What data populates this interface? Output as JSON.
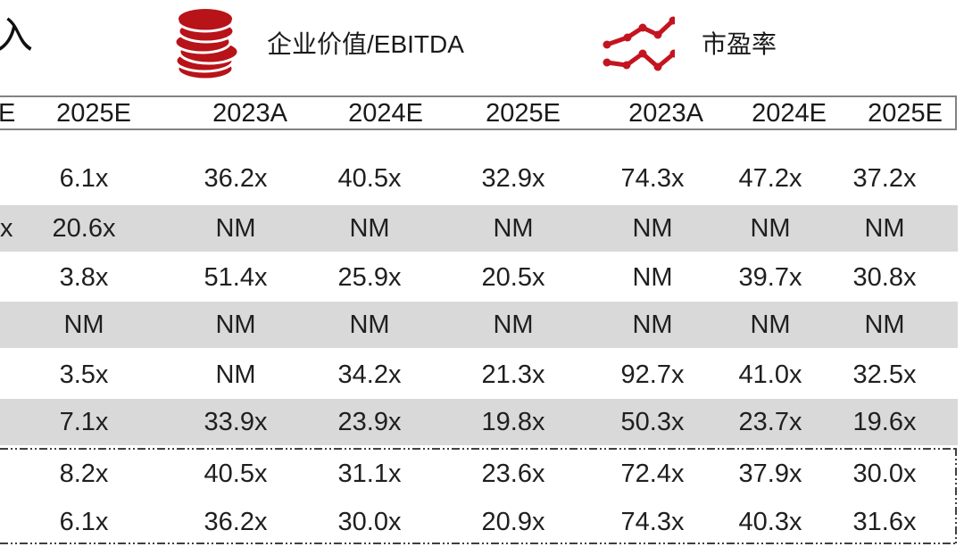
{
  "top": {
    "left_partial_label": "入",
    "ev_ebitda_section": {
      "icon": "coins-icon",
      "label": "企业价值/EBITDA"
    },
    "pe_section": {
      "icon": "line-chart-icon",
      "label": "市盈率"
    }
  },
  "table": {
    "partial_header": "E",
    "headers": [
      "2025E",
      "2023A",
      "2024E",
      "2025E",
      "2023A",
      "2024E",
      "2025E"
    ],
    "rows": [
      {
        "shaded": false,
        "partial": "",
        "values": [
          "6.1x",
          "36.2x",
          "40.5x",
          "32.9x",
          "74.3x",
          "47.2x",
          "37.2x"
        ]
      },
      {
        "shaded": true,
        "partial": "x",
        "values": [
          "20.6x",
          "NM",
          "NM",
          "NM",
          "NM",
          "NM",
          "NM"
        ]
      },
      {
        "shaded": false,
        "partial": "",
        "values": [
          "3.8x",
          "51.4x",
          "25.9x",
          "20.5x",
          "NM",
          "39.7x",
          "30.8x"
        ]
      },
      {
        "shaded": true,
        "partial": "",
        "values": [
          "NM",
          "NM",
          "NM",
          "NM",
          "NM",
          "NM",
          "NM"
        ]
      },
      {
        "shaded": false,
        "partial": "",
        "values": [
          "3.5x",
          "NM",
          "34.2x",
          "21.3x",
          "92.7x",
          "41.0x",
          "32.5x"
        ]
      },
      {
        "shaded": true,
        "partial": "",
        "values": [
          "7.1x",
          "33.9x",
          "23.9x",
          "19.8x",
          "50.3x",
          "23.7x",
          "19.6x"
        ]
      },
      {
        "shaded": false,
        "partial": "",
        "values": [
          "8.2x",
          "40.5x",
          "31.1x",
          "23.6x",
          "72.4x",
          "37.9x",
          "30.0x"
        ]
      },
      {
        "shaded": false,
        "partial": "",
        "values": [
          "6.1x",
          "36.2x",
          "30.0x",
          "20.9x",
          "74.3x",
          "40.3x",
          "31.6x"
        ]
      }
    ],
    "summary_box_row_indexes": [
      6,
      7
    ]
  },
  "colors": {
    "accent_red": "#b71318",
    "chart_red": "#c41420",
    "band_gray": "#d9d9d9",
    "border_gray": "#828282"
  }
}
